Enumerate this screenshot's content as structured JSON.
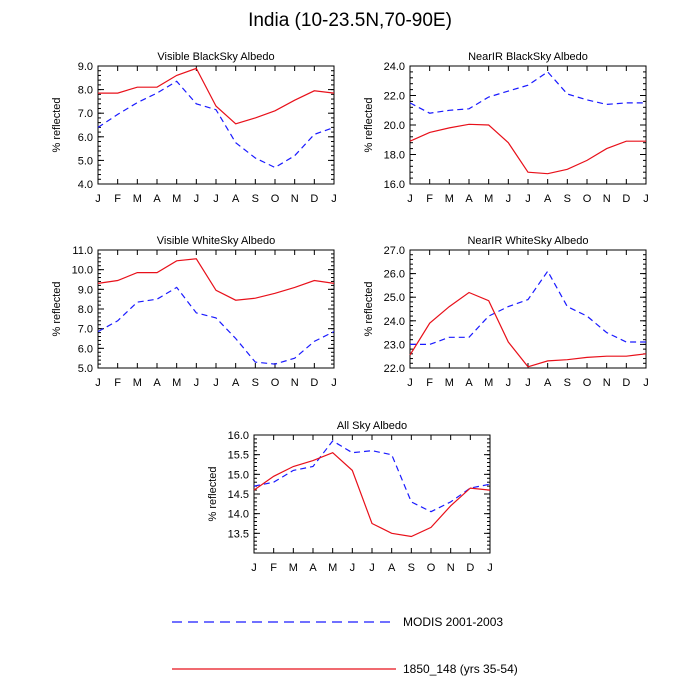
{
  "title": "India (10-23.5N,70-90E)",
  "colors": {
    "modis": "#1a1aff",
    "model": "#e8101a"
  },
  "legend": [
    {
      "key": "modis",
      "label": "MODIS 2001-2003",
      "style": "dashed"
    },
    {
      "key": "model",
      "label": "1850_148 (yrs 35-54)",
      "style": "solid"
    }
  ],
  "chart_data": [
    {
      "type": "line",
      "title": "Visible BlackSky Albedo",
      "ylabel": "% reflected",
      "categories": [
        "J",
        "F",
        "M",
        "A",
        "M",
        "J",
        "J",
        "A",
        "S",
        "O",
        "N",
        "D",
        "J"
      ],
      "ylim": [
        4.0,
        9.0
      ],
      "yticks": [
        "4.0",
        "5.0",
        "6.0",
        "7.0",
        "8.0",
        "9.0"
      ],
      "series": [
        {
          "key": "modis",
          "values": [
            6.4,
            6.95,
            7.45,
            7.85,
            8.35,
            7.4,
            7.15,
            5.75,
            5.1,
            4.7,
            5.2,
            6.1,
            6.4
          ]
        },
        {
          "key": "model",
          "values": [
            7.85,
            7.85,
            8.1,
            8.1,
            8.6,
            8.9,
            7.3,
            6.55,
            6.8,
            7.1,
            7.55,
            7.95,
            7.85
          ]
        }
      ]
    },
    {
      "type": "line",
      "title": "NearIR BlackSky Albedo",
      "ylabel": "% reflected",
      "categories": [
        "J",
        "F",
        "M",
        "A",
        "M",
        "J",
        "J",
        "A",
        "S",
        "O",
        "N",
        "D",
        "J"
      ],
      "ylim": [
        16.0,
        24.0
      ],
      "yticks": [
        "16.0",
        "18.0",
        "20.0",
        "22.0",
        "24.0"
      ],
      "series": [
        {
          "key": "modis",
          "values": [
            21.5,
            20.8,
            21.0,
            21.1,
            21.9,
            22.3,
            22.7,
            23.6,
            22.1,
            21.7,
            21.4,
            21.5,
            21.5
          ]
        },
        {
          "key": "model",
          "values": [
            18.9,
            19.5,
            19.8,
            20.05,
            20.0,
            18.8,
            16.8,
            16.7,
            17.0,
            17.6,
            18.4,
            18.9,
            18.9
          ]
        }
      ]
    },
    {
      "type": "line",
      "title": "Visible WhiteSky Albedo",
      "ylabel": "% reflected",
      "categories": [
        "J",
        "F",
        "M",
        "A",
        "M",
        "J",
        "J",
        "A",
        "S",
        "O",
        "N",
        "D",
        "J"
      ],
      "ylim": [
        5.0,
        11.0
      ],
      "yticks": [
        "5.0",
        "6.0",
        "7.0",
        "8.0",
        "9.0",
        "10.0",
        "11.0"
      ],
      "series": [
        {
          "key": "modis",
          "values": [
            6.85,
            7.4,
            8.35,
            8.5,
            9.1,
            7.8,
            7.55,
            6.5,
            5.3,
            5.2,
            5.5,
            6.35,
            6.85
          ]
        },
        {
          "key": "model",
          "values": [
            9.3,
            9.45,
            9.85,
            9.85,
            10.45,
            10.55,
            8.95,
            8.45,
            8.55,
            8.8,
            9.1,
            9.45,
            9.3
          ]
        }
      ]
    },
    {
      "type": "line",
      "title": "NearIR WhiteSky Albedo",
      "ylabel": "% reflected",
      "categories": [
        "J",
        "F",
        "M",
        "A",
        "M",
        "J",
        "J",
        "A",
        "S",
        "O",
        "N",
        "D",
        "J"
      ],
      "ylim": [
        22.0,
        27.0
      ],
      "yticks": [
        "22.0",
        "23.0",
        "24.0",
        "25.0",
        "26.0",
        "27.0"
      ],
      "series": [
        {
          "key": "modis",
          "values": [
            23.0,
            23.0,
            23.3,
            23.3,
            24.2,
            24.6,
            24.9,
            26.1,
            24.6,
            24.2,
            23.5,
            23.1,
            23.1
          ]
        },
        {
          "key": "model",
          "values": [
            22.55,
            23.9,
            24.6,
            25.2,
            24.85,
            23.1,
            22.05,
            22.3,
            22.35,
            22.45,
            22.5,
            22.5,
            22.6
          ]
        }
      ]
    },
    {
      "type": "line",
      "title": "All Sky Albedo",
      "ylabel": "% reflected",
      "categories": [
        "J",
        "F",
        "M",
        "A",
        "M",
        "J",
        "J",
        "A",
        "S",
        "O",
        "N",
        "D",
        "J"
      ],
      "ylim": [
        13.0,
        16.0
      ],
      "yticks": [
        "13.5",
        "14.0",
        "14.5",
        "15.0",
        "15.5",
        "16.0"
      ],
      "series": [
        {
          "key": "modis",
          "values": [
            14.7,
            14.8,
            15.1,
            15.2,
            15.85,
            15.55,
            15.6,
            15.5,
            14.3,
            14.05,
            14.3,
            14.65,
            14.75
          ]
        },
        {
          "key": "model",
          "values": [
            14.6,
            14.95,
            15.2,
            15.35,
            15.55,
            15.1,
            13.75,
            13.5,
            13.42,
            13.65,
            14.2,
            14.65,
            14.6
          ]
        }
      ]
    }
  ]
}
